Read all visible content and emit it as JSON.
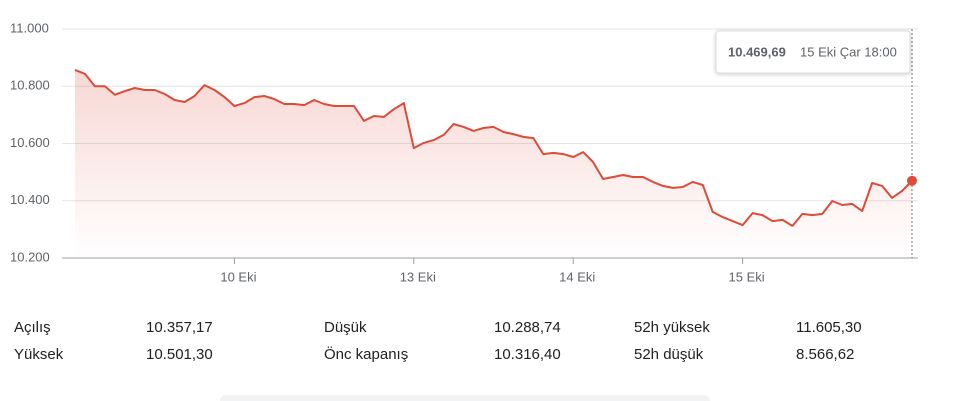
{
  "chart_data": {
    "type": "line",
    "categories": [
      null,
      null,
      null,
      null,
      null,
      null,
      null,
      null,
      null,
      null,
      null,
      null,
      null,
      null,
      null,
      null,
      "10 Eki",
      null,
      null,
      null,
      null,
      null,
      null,
      null,
      null,
      null,
      null,
      null,
      null,
      null,
      null,
      null,
      null,
      null,
      "13 Eki",
      null,
      null,
      null,
      null,
      null,
      null,
      null,
      null,
      null,
      null,
      null,
      null,
      null,
      null,
      null,
      "14 Eki",
      null,
      null,
      null,
      null,
      null,
      null,
      null,
      null,
      null,
      null,
      null,
      null,
      null,
      null,
      null,
      null,
      "15 Eki",
      null,
      null,
      null,
      null,
      null,
      null,
      null,
      null,
      null,
      null,
      null,
      null,
      null,
      null,
      null,
      null,
      null
    ],
    "values": [
      10857,
      10843,
      10800,
      10800,
      10770,
      10783,
      10794,
      10787,
      10787,
      10773,
      10752,
      10745,
      10766,
      10804,
      10787,
      10762,
      10731,
      10741,
      10762,
      10766,
      10755,
      10738,
      10738,
      10734,
      10752,
      10738,
      10731,
      10731,
      10731,
      10679,
      10696,
      10693,
      10720,
      10741,
      10584,
      10602,
      10612,
      10630,
      10668,
      10658,
      10644,
      10654,
      10658,
      10640,
      10633,
      10623,
      10619,
      10563,
      10567,
      10563,
      10553,
      10570,
      10535,
      10476,
      10483,
      10490,
      10483,
      10483,
      10466,
      10452,
      10445,
      10448,
      10466,
      10455,
      10361,
      10343,
      10329,
      10315,
      10357,
      10350,
      10329,
      10333,
      10312,
      10354,
      10350,
      10354,
      10399,
      10385,
      10389,
      10364,
      10462,
      10452,
      10410,
      10434,
      10469.69
    ],
    "color": "#dd4b39",
    "ylim": [
      10200,
      11000
    ],
    "yticks": [
      {
        "value": 11000,
        "label": "11.000"
      },
      {
        "value": 10800,
        "label": "10.800"
      },
      {
        "value": 10600,
        "label": "10.600"
      },
      {
        "value": 10400,
        "label": "10.400"
      },
      {
        "value": 10200,
        "label": "10.200"
      }
    ],
    "grid": true,
    "tooltip": {
      "value": "10.469,69",
      "time": "15 Eki Çar 18:00"
    }
  },
  "stats": {
    "rows": [
      [
        "Açılış",
        "10.357,17",
        "Düşük",
        "10.288,74",
        "52h yüksek",
        "11.605,30"
      ],
      [
        "Yüksek",
        "10.501,30",
        "Önc kapanış",
        "10.316,40",
        "52h düşük",
        "8.566,62"
      ]
    ]
  }
}
